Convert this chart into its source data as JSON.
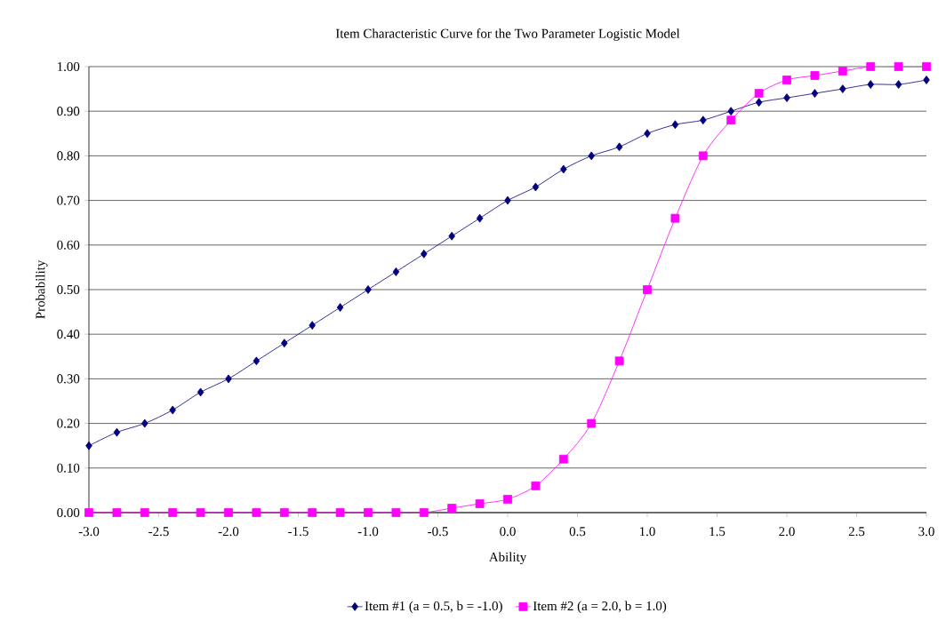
{
  "chart_data": {
    "type": "line",
    "title": "Item Characteristic Curve for the Two Parameter Logistic Model",
    "xlabel": "Ability",
    "ylabel": "Probability",
    "x": [
      -3.0,
      -2.8,
      -2.6,
      -2.4,
      -2.2,
      -2.0,
      -1.8,
      -1.6,
      -1.4,
      -1.2,
      -1.0,
      -0.8,
      -0.6,
      -0.4,
      -0.2,
      0.0,
      0.2,
      0.4,
      0.6,
      0.8,
      1.0,
      1.2,
      1.4,
      1.6,
      1.8,
      2.0,
      2.2,
      2.4,
      2.6,
      2.8,
      3.0
    ],
    "series": [
      {
        "name": "Item #1 (a = 0.5, b = -1.0)",
        "color": "#000080",
        "marker": "diamond",
        "values": [
          0.15,
          0.18,
          0.2,
          0.23,
          0.27,
          0.3,
          0.34,
          0.38,
          0.42,
          0.46,
          0.5,
          0.54,
          0.58,
          0.62,
          0.66,
          0.7,
          0.73,
          0.77,
          0.8,
          0.82,
          0.85,
          0.87,
          0.88,
          0.9,
          0.92,
          0.93,
          0.94,
          0.95,
          0.96,
          0.96,
          0.97
        ]
      },
      {
        "name": "Item #2 (a = 2.0, b = 1.0)",
        "color": "#ff00ff",
        "marker": "square",
        "values": [
          0.0,
          0.0,
          0.0,
          0.0,
          0.0,
          0.0,
          0.0,
          0.0,
          0.0,
          0.0,
          0.0,
          0.0,
          0.0,
          0.01,
          0.02,
          0.03,
          0.06,
          0.12,
          0.2,
          0.34,
          0.5,
          0.66,
          0.8,
          0.88,
          0.94,
          0.97,
          0.98,
          0.99,
          1.0,
          1.0,
          1.0
        ]
      }
    ],
    "xlim": [
      -3.0,
      3.0
    ],
    "ylim": [
      0.0,
      1.0
    ],
    "xticks": [
      {
        "value": -3.0,
        "label": "-3.0"
      },
      {
        "value": -2.5,
        "label": "-2.5"
      },
      {
        "value": -2.0,
        "label": "-2.0"
      },
      {
        "value": -1.5,
        "label": "-1.5"
      },
      {
        "value": -1.0,
        "label": "-1.0"
      },
      {
        "value": -0.5,
        "label": "-0.5"
      },
      {
        "value": 0.0,
        "label": "0.0"
      },
      {
        "value": 0.5,
        "label": "0.5"
      },
      {
        "value": 1.0,
        "label": "1.0"
      },
      {
        "value": 1.5,
        "label": "1.5"
      },
      {
        "value": 2.0,
        "label": "2.0"
      },
      {
        "value": 2.5,
        "label": "2.5"
      },
      {
        "value": 3.0,
        "label": "3.0"
      }
    ],
    "yticks": [
      {
        "value": 0.0,
        "label": "0.00"
      },
      {
        "value": 0.1,
        "label": "0.10"
      },
      {
        "value": 0.2,
        "label": "0.20"
      },
      {
        "value": 0.3,
        "label": "0.30"
      },
      {
        "value": 0.4,
        "label": "0.40"
      },
      {
        "value": 0.5,
        "label": "0.50"
      },
      {
        "value": 0.6,
        "label": "0.60"
      },
      {
        "value": 0.7,
        "label": "0.70"
      },
      {
        "value": 0.8,
        "label": "0.80"
      },
      {
        "value": 0.9,
        "label": "0.90"
      },
      {
        "value": 1.0,
        "label": "1.00"
      }
    ],
    "grid": "y",
    "legend": "bottom"
  }
}
